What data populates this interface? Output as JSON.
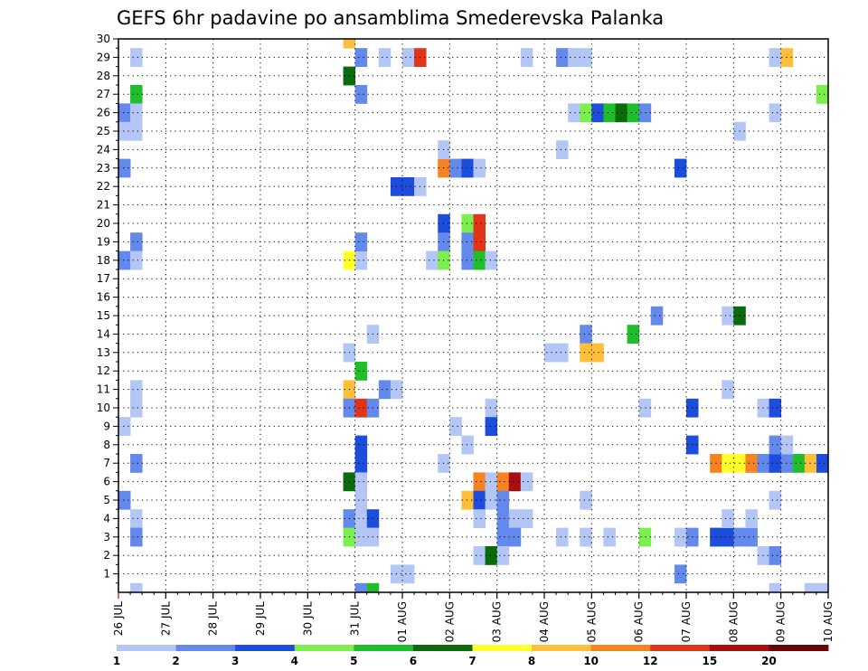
{
  "chart_data": {
    "type": "heatmap",
    "title": "GEFS 6hr padavine po ansamblima Smederevska Palanka",
    "xlabel": "",
    "ylabel": "",
    "y_ticks": [
      1,
      2,
      3,
      4,
      5,
      6,
      7,
      8,
      9,
      10,
      11,
      12,
      13,
      14,
      15,
      16,
      17,
      18,
      19,
      20,
      21,
      22,
      23,
      24,
      25,
      26,
      27,
      28,
      29,
      30
    ],
    "ylim": [
      0,
      30
    ],
    "x_ticks": [
      "26 JUL",
      "27 JUL",
      "28 JUL",
      "29 JUL",
      "30 JUL",
      "31 JUL",
      "01 AUG",
      "02 AUG",
      "03 AUG",
      "04 AUG",
      "05 AUG",
      "06 AUG",
      "07 AUG",
      "08 AUG",
      "09 AUG",
      "10 AUG"
    ],
    "x_unit": "6-hour step from 26 JUL 00Z",
    "xlim": [
      0,
      60
    ],
    "grid": true,
    "legend": {
      "position": "bottom",
      "labels": [
        "1",
        "2",
        "3",
        "4",
        "5",
        "6",
        "7",
        "8",
        "10",
        "12",
        "15",
        "20"
      ],
      "colors": [
        "#b3c6f5",
        "#6389ec",
        "#1d4ddc",
        "#7cee4e",
        "#1fbe2b",
        "#0a6a0c",
        "#ffff2a",
        "#ffbf3a",
        "#f58322",
        "#e13519",
        "#a80e0e",
        "#6a0505"
      ]
    },
    "cells": [
      {
        "x": 1,
        "y": 29,
        "c": 0
      },
      {
        "x": 1,
        "y": 27,
        "c": 4
      },
      {
        "x": 0,
        "y": 26,
        "c": 1
      },
      {
        "x": 1,
        "y": 26,
        "c": 0
      },
      {
        "x": 0,
        "y": 25,
        "c": 0
      },
      {
        "x": 1,
        "y": 25,
        "c": 0
      },
      {
        "x": 0,
        "y": 23,
        "c": 1
      },
      {
        "x": 1,
        "y": 19,
        "c": 1
      },
      {
        "x": 0,
        "y": 18,
        "c": 1
      },
      {
        "x": 1,
        "y": 18,
        "c": 0
      },
      {
        "x": 1,
        "y": 11,
        "c": 0
      },
      {
        "x": 1,
        "y": 10,
        "c": 0
      },
      {
        "x": 0,
        "y": 9,
        "c": 0
      },
      {
        "x": 1,
        "y": 7,
        "c": 1
      },
      {
        "x": 0,
        "y": 5,
        "c": 1
      },
      {
        "x": 1,
        "y": 4,
        "c": 0
      },
      {
        "x": 1,
        "y": 3,
        "c": 1
      },
      {
        "x": 1,
        "y": 0,
        "c": 0
      },
      {
        "x": 19,
        "y": 30,
        "c": 7
      },
      {
        "x": 20,
        "y": 29,
        "c": 1
      },
      {
        "x": 19,
        "y": 28,
        "c": 5
      },
      {
        "x": 20,
        "y": 27,
        "c": 1
      },
      {
        "x": 19,
        "y": 18,
        "c": 6
      },
      {
        "x": 20,
        "y": 18,
        "c": 0
      },
      {
        "x": 20,
        "y": 19,
        "c": 1
      },
      {
        "x": 21,
        "y": 14,
        "c": 0
      },
      {
        "x": 19,
        "y": 13,
        "c": 0
      },
      {
        "x": 20,
        "y": 12,
        "c": 4
      },
      {
        "x": 19,
        "y": 11,
        "c": 7
      },
      {
        "x": 19,
        "y": 10,
        "c": 1
      },
      {
        "x": 20,
        "y": 10,
        "c": 9
      },
      {
        "x": 21,
        "y": 10,
        "c": 1
      },
      {
        "x": 20,
        "y": 8,
        "c": 2
      },
      {
        "x": 20,
        "y": 7,
        "c": 2
      },
      {
        "x": 19,
        "y": 6,
        "c": 5
      },
      {
        "x": 20,
        "y": 6,
        "c": 0
      },
      {
        "x": 20,
        "y": 5,
        "c": 0
      },
      {
        "x": 19,
        "y": 4,
        "c": 1
      },
      {
        "x": 20,
        "y": 4,
        "c": 0
      },
      {
        "x": 21,
        "y": 4,
        "c": 2
      },
      {
        "x": 19,
        "y": 3,
        "c": 3
      },
      {
        "x": 20,
        "y": 3,
        "c": 0
      },
      {
        "x": 21,
        "y": 3,
        "c": 0
      },
      {
        "x": 20,
        "y": 0,
        "c": 1
      },
      {
        "x": 21,
        "y": 0,
        "c": 4
      },
      {
        "x": 22,
        "y": 29,
        "c": 0
      },
      {
        "x": 24,
        "y": 29,
        "c": 0
      },
      {
        "x": 25,
        "y": 29,
        "c": 9
      },
      {
        "x": 23,
        "y": 22,
        "c": 2
      },
      {
        "x": 24,
        "y": 22,
        "c": 2
      },
      {
        "x": 25,
        "y": 22,
        "c": 0
      },
      {
        "x": 22,
        "y": 11,
        "c": 1
      },
      {
        "x": 23,
        "y": 11,
        "c": 0
      },
      {
        "x": 23,
        "y": 1,
        "c": 0
      },
      {
        "x": 24,
        "y": 1,
        "c": 0
      },
      {
        "x": 27,
        "y": 23,
        "c": 8
      },
      {
        "x": 28,
        "y": 23,
        "c": 1
      },
      {
        "x": 29,
        "y": 23,
        "c": 2
      },
      {
        "x": 30,
        "y": 23,
        "c": 0
      },
      {
        "x": 27,
        "y": 24,
        "c": 0
      },
      {
        "x": 27,
        "y": 20,
        "c": 2
      },
      {
        "x": 29,
        "y": 20,
        "c": 3
      },
      {
        "x": 30,
        "y": 20,
        "c": 9
      },
      {
        "x": 27,
        "y": 19,
        "c": 1
      },
      {
        "x": 29,
        "y": 19,
        "c": 1
      },
      {
        "x": 30,
        "y": 19,
        "c": 9
      },
      {
        "x": 26,
        "y": 18,
        "c": 0
      },
      {
        "x": 27,
        "y": 18,
        "c": 3
      },
      {
        "x": 29,
        "y": 18,
        "c": 1
      },
      {
        "x": 30,
        "y": 18,
        "c": 4
      },
      {
        "x": 31,
        "y": 18,
        "c": 0
      },
      {
        "x": 28,
        "y": 9,
        "c": 0
      },
      {
        "x": 29,
        "y": 8,
        "c": 0
      },
      {
        "x": 27,
        "y": 7,
        "c": 0
      },
      {
        "x": 30,
        "y": 6,
        "c": 8
      },
      {
        "x": 31,
        "y": 6,
        "c": 0
      },
      {
        "x": 32,
        "y": 6,
        "c": 8
      },
      {
        "x": 33,
        "y": 6,
        "c": 10
      },
      {
        "x": 34,
        "y": 6,
        "c": 0
      },
      {
        "x": 29,
        "y": 5,
        "c": 7
      },
      {
        "x": 30,
        "y": 5,
        "c": 2
      },
      {
        "x": 31,
        "y": 5,
        "c": 0
      },
      {
        "x": 32,
        "y": 5,
        "c": 1
      },
      {
        "x": 30,
        "y": 4,
        "c": 0
      },
      {
        "x": 32,
        "y": 4,
        "c": 1
      },
      {
        "x": 33,
        "y": 4,
        "c": 0
      },
      {
        "x": 34,
        "y": 4,
        "c": 0
      },
      {
        "x": 32,
        "y": 3,
        "c": 1
      },
      {
        "x": 33,
        "y": 3,
        "c": 1
      },
      {
        "x": 30,
        "y": 2,
        "c": 0
      },
      {
        "x": 31,
        "y": 2,
        "c": 5
      },
      {
        "x": 32,
        "y": 2,
        "c": 0
      },
      {
        "x": 31,
        "y": 10,
        "c": 0
      },
      {
        "x": 31,
        "y": 9,
        "c": 2
      },
      {
        "x": 34,
        "y": 29,
        "c": 0
      },
      {
        "x": 37,
        "y": 29,
        "c": 1
      },
      {
        "x": 38,
        "y": 29,
        "c": 0
      },
      {
        "x": 39,
        "y": 29,
        "c": 0
      },
      {
        "x": 37,
        "y": 24,
        "c": 0
      },
      {
        "x": 38,
        "y": 26,
        "c": 0
      },
      {
        "x": 39,
        "y": 26,
        "c": 3
      },
      {
        "x": 40,
        "y": 26,
        "c": 2
      },
      {
        "x": 41,
        "y": 26,
        "c": 4
      },
      {
        "x": 42,
        "y": 26,
        "c": 5
      },
      {
        "x": 43,
        "y": 26,
        "c": 4
      },
      {
        "x": 44,
        "y": 26,
        "c": 1
      },
      {
        "x": 39,
        "y": 14,
        "c": 1
      },
      {
        "x": 36,
        "y": 13,
        "c": 0
      },
      {
        "x": 37,
        "y": 13,
        "c": 0
      },
      {
        "x": 39,
        "y": 13,
        "c": 7
      },
      {
        "x": 40,
        "y": 13,
        "c": 7
      },
      {
        "x": 43,
        "y": 14,
        "c": 4
      },
      {
        "x": 45,
        "y": 15,
        "c": 1
      },
      {
        "x": 39,
        "y": 5,
        "c": 0
      },
      {
        "x": 37,
        "y": 3,
        "c": 0
      },
      {
        "x": 39,
        "y": 3,
        "c": 0
      },
      {
        "x": 41,
        "y": 3,
        "c": 0
      },
      {
        "x": 44,
        "y": 3,
        "c": 3
      },
      {
        "x": 44,
        "y": 10,
        "c": 0
      },
      {
        "x": 47,
        "y": 23,
        "c": 2
      },
      {
        "x": 48,
        "y": 10,
        "c": 2
      },
      {
        "x": 48,
        "y": 8,
        "c": 2
      },
      {
        "x": 47,
        "y": 3,
        "c": 0
      },
      {
        "x": 48,
        "y": 3,
        "c": 1
      },
      {
        "x": 47,
        "y": 1,
        "c": 1
      },
      {
        "x": 51,
        "y": 15,
        "c": 0
      },
      {
        "x": 52,
        "y": 15,
        "c": 5
      },
      {
        "x": 51,
        "y": 11,
        "c": 0
      },
      {
        "x": 52,
        "y": 25,
        "c": 0
      },
      {
        "x": 50,
        "y": 7,
        "c": 8
      },
      {
        "x": 51,
        "y": 7,
        "c": 6
      },
      {
        "x": 52,
        "y": 7,
        "c": 6
      },
      {
        "x": 53,
        "y": 7,
        "c": 8
      },
      {
        "x": 54,
        "y": 7,
        "c": 1
      },
      {
        "x": 55,
        "y": 7,
        "c": 2
      },
      {
        "x": 56,
        "y": 7,
        "c": 1
      },
      {
        "x": 57,
        "y": 7,
        "c": 4
      },
      {
        "x": 58,
        "y": 7,
        "c": 7
      },
      {
        "x": 59,
        "y": 7,
        "c": 2
      },
      {
        "x": 55,
        "y": 8,
        "c": 1
      },
      {
        "x": 56,
        "y": 8,
        "c": 0
      },
      {
        "x": 50,
        "y": 3,
        "c": 2
      },
      {
        "x": 51,
        "y": 3,
        "c": 2
      },
      {
        "x": 52,
        "y": 3,
        "c": 1
      },
      {
        "x": 53,
        "y": 3,
        "c": 1
      },
      {
        "x": 51,
        "y": 4,
        "c": 0
      },
      {
        "x": 53,
        "y": 4,
        "c": 0
      },
      {
        "x": 54,
        "y": 10,
        "c": 0
      },
      {
        "x": 55,
        "y": 10,
        "c": 2
      },
      {
        "x": 55,
        "y": 29,
        "c": 0
      },
      {
        "x": 56,
        "y": 29,
        "c": 7
      },
      {
        "x": 55,
        "y": 26,
        "c": 0
      },
      {
        "x": 59,
        "y": 27,
        "c": 3
      },
      {
        "x": 55,
        "y": 5,
        "c": 0
      },
      {
        "x": 54,
        "y": 2,
        "c": 0
      },
      {
        "x": 55,
        "y": 2,
        "c": 1
      },
      {
        "x": 55,
        "y": 0,
        "c": 0
      },
      {
        "x": 58,
        "y": 0,
        "c": 0
      },
      {
        "x": 59,
        "y": 0,
        "c": 0
      }
    ]
  }
}
